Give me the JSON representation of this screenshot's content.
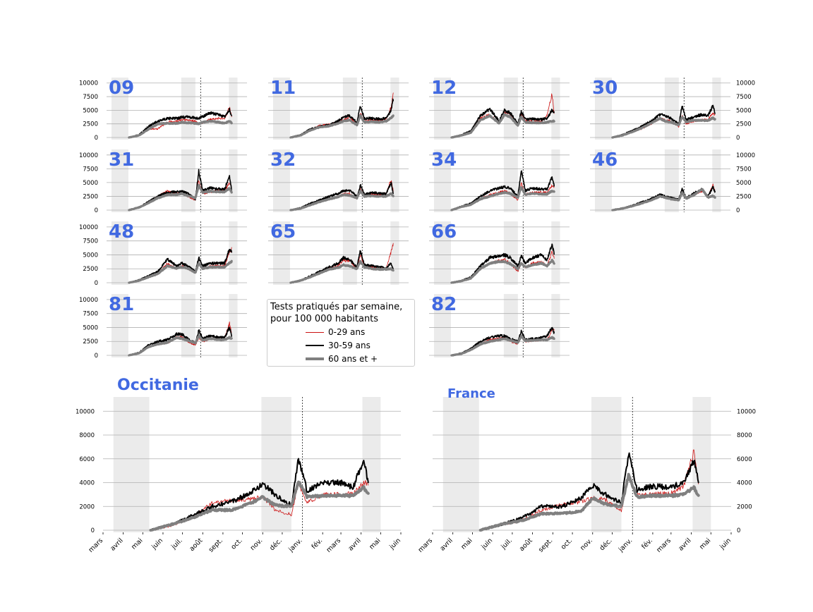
{
  "colors": {
    "title": "#4169E1",
    "lockdown_shade": "#ebebeb",
    "grid": "#b0b0b0",
    "series": [
      "#cc1111",
      "#000000",
      "#808080"
    ]
  },
  "legend": {
    "title_line1": "Tests pratiqués par semaine,",
    "title_line2": "pour 100 000 habitants",
    "entries": [
      "0-29 ans",
      "30-59 ans",
      "60 ans et +"
    ]
  },
  "chart_data": {
    "type": "line",
    "date_ticks": [
      "mars",
      "avril",
      "mai",
      "juin",
      "juil.",
      "août",
      "sept.",
      "oct.",
      "nov.",
      "déc.",
      "janv.",
      "fév.",
      "mars",
      "avril",
      "mai",
      "juin"
    ],
    "x_range": [
      "2020-03-01",
      "2021-06-01"
    ],
    "shaded_periods": [
      [
        "2020-03-17",
        "2020-05-11"
      ],
      [
        "2020-10-30",
        "2020-12-15"
      ],
      [
        "2021-04-03",
        "2021-05-01"
      ]
    ],
    "vline_date": "2021-01-01",
    "series_names": [
      "0-29 ans",
      "30-59 ans",
      "60 ans et +"
    ],
    "keypoints_dates": [
      "2020-05-13",
      "2020-06-15",
      "2020-07-15",
      "2020-08-15",
      "2020-09-15",
      "2020-10-15",
      "2020-11-01",
      "2020-11-20",
      "2020-12-15",
      "2020-12-26",
      "2021-01-08",
      "2021-02-01",
      "2021-03-01",
      "2021-03-20",
      "2021-04-05",
      "2021-04-12"
    ],
    "small_panels": {
      "ylim": [
        0,
        11000
      ],
      "yticks": [
        0,
        2500,
        5000,
        7500,
        10000
      ],
      "panels": [
        {
          "label": "09",
          "series": [
            [
              0,
              400,
              1500,
              1600,
              2800,
              3000,
              3200,
              3200,
              3000,
              2600,
              2700,
              3300,
              3500,
              3500,
              5500,
              4000
            ],
            [
              0,
              500,
              2000,
              3000,
              3500,
              3500,
              3700,
              3800,
              3600,
              3500,
              3800,
              4500,
              4200,
              3800,
              5200,
              4000
            ],
            [
              0,
              400,
              1500,
              2500,
              2600,
              2600,
              2800,
              2700,
              2600,
              2500,
              2800,
              3000,
              2800,
              2600,
              3000,
              2700
            ]
          ]
        },
        {
          "label": "11",
          "series": [
            [
              0,
              400,
              1300,
              2200,
              2400,
              2800,
              3200,
              3800,
              2500,
              4500,
              3000,
              3200,
              3100,
              3400,
              5500,
              8000
            ],
            [
              0,
              500,
              1500,
              2000,
              2300,
              3000,
              3800,
              4000,
              2800,
              5800,
              3500,
              3500,
              3400,
              3500,
              5000,
              7000
            ],
            [
              0,
              400,
              1300,
              1900,
              2100,
              2600,
              3000,
              3200,
              2300,
              4000,
              2800,
              2900,
              2800,
              3000,
              3600,
              4000
            ]
          ]
        },
        {
          "label": "12",
          "series": [
            [
              0,
              400,
              1000,
              3500,
              4200,
              2600,
              4500,
              4300,
              2300,
              4300,
              3000,
              3000,
              2900,
              4200,
              8000,
              4500
            ],
            [
              0,
              500,
              1200,
              4000,
              5200,
              3000,
              5000,
              4500,
              2500,
              4800,
              3300,
              3400,
              3300,
              3500,
              5000,
              4500
            ],
            [
              0,
              400,
              900,
              3200,
              4000,
              2600,
              4200,
              3800,
              2200,
              3800,
              2800,
              2700,
              2700,
              2800,
              3000,
              3000
            ]
          ]
        },
        {
          "label": "30",
          "series": [
            [
              0,
              500,
              1000,
              1600,
              2500,
              3500,
              3200,
              3000,
              2000,
              4000,
              2500,
              3000,
              3200,
              3300,
              4500,
              4000
            ],
            [
              0,
              500,
              1200,
              2000,
              3000,
              4200,
              4000,
              3500,
              2500,
              5800,
              3200,
              3800,
              4200,
              4000,
              5800,
              4500
            ],
            [
              0,
              400,
              1000,
              1700,
              2600,
              3500,
              3000,
              2800,
              2300,
              3800,
              2800,
              3200,
              3100,
              3100,
              3600,
              3300
            ]
          ]
        },
        {
          "label": "31",
          "series": [
            [
              0,
              500,
              1500,
              2500,
              3500,
              3000,
              3200,
              2500,
              1800,
              5500,
              3000,
              3200,
              3500,
              3500,
              5000,
              4000
            ],
            [
              0,
              500,
              1500,
              2500,
              3200,
              3300,
              3400,
              3000,
              2000,
              7000,
              3500,
              4000,
              3800,
              3800,
              6200,
              3500
            ],
            [
              0,
              500,
              1300,
              2200,
              2800,
              2800,
              3000,
              2600,
              2200,
              4500,
              3200,
              3400,
              3300,
              3300,
              4000,
              3200
            ]
          ]
        },
        {
          "label": "32",
          "series": [
            [
              0,
              400,
              1000,
              1500,
              2000,
              2500,
              3000,
              3000,
              2000,
              4000,
              2500,
              3000,
              2800,
              3000,
              5500,
              3500
            ],
            [
              0,
              400,
              1200,
              1800,
              2500,
              3000,
              3500,
              3600,
              2500,
              4500,
              2800,
              3200,
              3000,
              3000,
              5000,
              3000
            ],
            [
              0,
              300,
              900,
              1500,
              2000,
              2400,
              2800,
              2700,
              2200,
              3500,
              2500,
              2600,
              2500,
              2500,
              3000,
              2600
            ]
          ]
        },
        {
          "label": "34",
          "series": [
            [
              0,
              600,
              1000,
              2000,
              2800,
              3200,
              3500,
              3000,
              1800,
              5000,
              2800,
              3200,
              3200,
              3200,
              4500,
              4000
            ],
            [
              0,
              700,
              1200,
              2500,
              3500,
              4000,
              4200,
              4000,
              2500,
              7300,
              3500,
              4000,
              3800,
              3800,
              6000,
              4500
            ],
            [
              0,
              600,
              1000,
              2000,
              2500,
              3000,
              3200,
              3000,
              2300,
              4200,
              2800,
              3000,
              2900,
              2900,
              3500,
              3300
            ]
          ]
        },
        {
          "label": "46",
          "series": [
            [
              0,
              300,
              700,
              1200,
              1800,
              2500,
              2300,
              2000,
              1800,
              3500,
              2000,
              2800,
              3500,
              2500,
              4500,
              3500
            ],
            [
              0,
              300,
              800,
              1400,
              2000,
              2800,
              2500,
              2200,
              2000,
              3800,
              2200,
              3000,
              3800,
              2500,
              4200,
              3200
            ],
            [
              0,
              300,
              700,
              1200,
              1800,
              2500,
              2300,
              2000,
              1800,
              3200,
              2100,
              2700,
              3800,
              2300,
              2600,
              2300
            ]
          ]
        },
        {
          "label": "48",
          "series": [
            [
              0,
              500,
              1000,
              1500,
              3500,
              2500,
              3000,
              2500,
              1800,
              3500,
              2500,
              3000,
              3000,
              3000,
              5500,
              6000
            ],
            [
              0,
              500,
              1200,
              2000,
              4200,
              3000,
              3500,
              3000,
              2000,
              4500,
              3000,
              3500,
              3500,
              3500,
              6000,
              5500
            ],
            [
              0,
              400,
              1000,
              1600,
              3000,
              2600,
              2800,
              2600,
              1800,
              3500,
              2500,
              2800,
              2800,
              2800,
              3600,
              3800
            ]
          ]
        },
        {
          "label": "65",
          "series": [
            [
              0,
              400,
              1000,
              1800,
              2600,
              3000,
              4000,
              4000,
              2500,
              5000,
              3000,
              2800,
              2600,
              2500,
              5500,
              7000
            ],
            [
              0,
              400,
              1200,
              2000,
              2800,
              3500,
              4500,
              4200,
              2800,
              5800,
              3200,
              3000,
              2800,
              2600,
              3500,
              2500
            ],
            [
              0,
              400,
              1000,
              1700,
              2400,
              2700,
              3200,
              3000,
              2500,
              3800,
              2800,
              2500,
              2400,
              2400,
              2500,
              2200
            ]
          ]
        },
        {
          "label": "66",
          "series": [
            [
              0,
              300,
              700,
              2500,
              3500,
              4000,
              4200,
              3500,
              2000,
              3500,
              2800,
              3500,
              3800,
              3000,
              5500,
              4500
            ],
            [
              0,
              400,
              1000,
              3000,
              4500,
              4800,
              5000,
              4500,
              3000,
              4800,
              3500,
              4500,
              5000,
              4000,
              7000,
              5000
            ],
            [
              0,
              300,
              800,
              2500,
              3500,
              3800,
              3800,
              3400,
              2500,
              3500,
              2800,
              3200,
              3500,
              3000,
              4000,
              3500
            ]
          ]
        },
        {
          "label": "81",
          "series": [
            [
              0,
              500,
              1500,
              2000,
              2200,
              3200,
              3300,
              2500,
              1800,
              3200,
              2500,
              3000,
              3000,
              3000,
              5800,
              4000
            ],
            [
              0,
              500,
              1800,
              2500,
              2800,
              3800,
              3800,
              3000,
              2200,
              4500,
              3000,
              3500,
              3200,
              3200,
              5000,
              3500
            ],
            [
              0,
              400,
              1500,
              2000,
              2300,
              3200,
              3000,
              2700,
              2200,
              3500,
              2700,
              3000,
              2800,
              2800,
              3200,
              3000
            ]
          ]
        },
        {
          "label": "82",
          "series": [
            [
              0,
              400,
              1000,
              2000,
              2800,
              3000,
              3200,
              2500,
              2000,
              3500,
              2500,
              2600,
              2800,
              2800,
              4500,
              4500
            ],
            [
              0,
              400,
              1200,
              2500,
              3200,
              3500,
              3500,
              3000,
              2500,
              4300,
              2800,
              3000,
              3200,
              3500,
              5000,
              4000
            ],
            [
              0,
              300,
              1000,
              2000,
              2500,
              2800,
              3000,
              2700,
              2300,
              3500,
              2600,
              2700,
              2800,
              2800,
              3200,
              3000
            ]
          ]
        }
      ]
    },
    "large_panels": {
      "ylim": [
        0,
        11200
      ],
      "yticks": [
        0,
        2000,
        4000,
        6000,
        8000,
        10000
      ],
      "panels": [
        {
          "label": "Occitanie",
          "series": [
            [
              0,
              400,
              1000,
              2300,
              2500,
              2600,
              2800,
              1700,
              1300,
              4000,
              2300,
              3000,
              3000,
              3100,
              4000,
              4000
            ],
            [
              0,
              500,
              1200,
              2000,
              2400,
              3200,
              3900,
              3000,
              2100,
              6000,
              3300,
              4000,
              4000,
              3600,
              6000,
              4000
            ],
            [
              0,
              500,
              1000,
              1700,
              1700,
              2300,
              2800,
              2100,
              2000,
              4100,
              2800,
              2900,
              2900,
              2900,
              3600,
              3000
            ]
          ]
        },
        {
          "label": "France",
          "series": [
            [
              0,
              500,
              800,
              1700,
              2200,
              2400,
              2700,
              2600,
              1600,
              4600,
              3000,
              3000,
              3100,
              3700,
              6600,
              3800
            ],
            [
              0,
              500,
              1000,
              2000,
              2000,
              2700,
              3800,
              3000,
              2300,
              6500,
              3400,
              3700,
              3600,
              4000,
              5900,
              4200
            ],
            [
              0,
              500,
              800,
              1400,
              1400,
              1600,
              2700,
              2200,
              2000,
              4600,
              2800,
              2900,
              2900,
              3000,
              3600,
              2900
            ]
          ]
        }
      ]
    }
  }
}
